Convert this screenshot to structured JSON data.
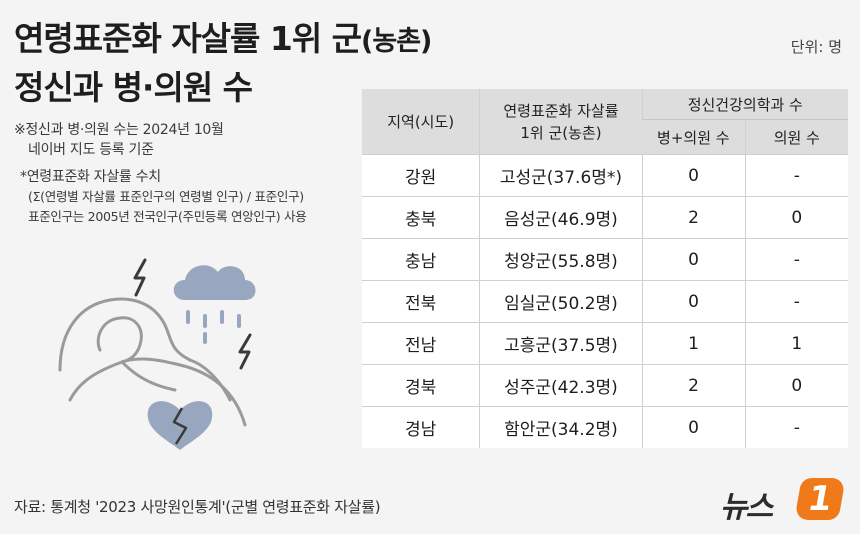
{
  "title": {
    "line1_main": "연령표준화 자살률 1위 군",
    "line1_paren": "(농촌)",
    "line2": "정신과 병·의원 수"
  },
  "unit": "단위: 명",
  "notes": {
    "n1": "※정신과 병·의원 수는 2024년 10월",
    "n2": "네이버 지도 등록 기준",
    "n3": "*연령표준화 자살률 수치",
    "n4": "(Σ(연령별 자살률 표준인구의 연령별 인구) / 표준인구)",
    "n5": "표준인구는 2005년 전국인구(주민등록 연앙인구) 사용"
  },
  "table": {
    "headers": {
      "region": "지역(시도)",
      "county": "연령표준화 자살률\n1위 군(농촌)",
      "group": "정신건강의학과 수",
      "hospital": "병+의원 수",
      "clinic": "의원 수"
    },
    "rows": [
      {
        "region": "강원",
        "county": "고성군(37.6명*)",
        "hospital": "0",
        "clinic": "-"
      },
      {
        "region": "충북",
        "county": "음성군(46.9명)",
        "hospital": "2",
        "clinic": "0"
      },
      {
        "region": "충남",
        "county": "청양군(55.8명)",
        "hospital": "0",
        "clinic": "-"
      },
      {
        "region": "전북",
        "county": "임실군(50.2명)",
        "hospital": "0",
        "clinic": "-"
      },
      {
        "region": "전남",
        "county": "고흥군(37.5명)",
        "hospital": "1",
        "clinic": "1"
      },
      {
        "region": "경북",
        "county": "성주군(42.3명)",
        "hospital": "2",
        "clinic": "0"
      },
      {
        "region": "경남",
        "county": "함안군(34.2명)",
        "hospital": "0",
        "clinic": "-"
      }
    ]
  },
  "footer": "자료: 통계청 '2023 사망원인통계'(군별 연령표준화 자살률)",
  "logo": {
    "text": "뉴스",
    "badge": "1"
  },
  "colors": {
    "accent": "#f07a1a",
    "illustration": "#98a7bf",
    "outline": "#9a9a9a"
  },
  "icons": [
    "lightning-icon",
    "cloud-rain-icon",
    "broken-heart-icon",
    "person-illustration"
  ]
}
